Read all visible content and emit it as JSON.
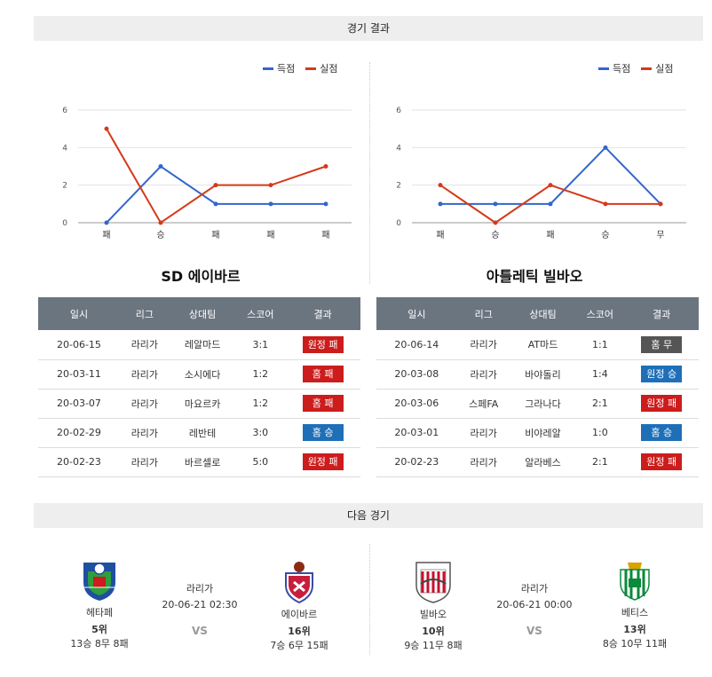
{
  "section_results": "경기 결과",
  "section_next": "다음 경기",
  "legend": {
    "scored": "득점",
    "conceded": "실점"
  },
  "colors": {
    "scored": "#3366cc",
    "conceded": "#d43a1a",
    "win": "#1e6fb8",
    "lose": "#cc1c1c",
    "draw": "#555555",
    "header": "#6b7580"
  },
  "chart_data": [
    {
      "type": "line",
      "categories": [
        "패",
        "승",
        "패",
        "패",
        "패"
      ],
      "series": [
        {
          "name": "득점",
          "values": [
            0,
            3,
            1,
            1,
            1
          ]
        },
        {
          "name": "실점",
          "values": [
            5,
            0,
            2,
            2,
            3
          ]
        }
      ],
      "ylim": [
        0,
        6
      ],
      "yticks": [
        "0",
        "2",
        "4",
        "6"
      ],
      "grid": true,
      "legend": "top-right"
    },
    {
      "type": "line",
      "categories": [
        "패",
        "승",
        "패",
        "승",
        "무"
      ],
      "series": [
        {
          "name": "득점",
          "values": [
            1,
            1,
            1,
            4,
            1
          ]
        },
        {
          "name": "실점",
          "values": [
            2,
            0,
            2,
            1,
            1
          ]
        }
      ],
      "ylim": [
        0,
        6
      ],
      "yticks": [
        "0",
        "2",
        "4",
        "6"
      ],
      "grid": true,
      "legend": "top-right"
    }
  ],
  "teams": {
    "left": "SD 에이바르",
    "right": "아틀레틱 빌바오"
  },
  "table_headers": [
    "일시",
    "리그",
    "상대팀",
    "스코어",
    "결과"
  ],
  "left_matches": [
    {
      "date": "20-06-15",
      "league": "라리가",
      "opponent": "레알마드",
      "score": "3:1",
      "result": "원정 패",
      "kind": "lose"
    },
    {
      "date": "20-03-11",
      "league": "라리가",
      "opponent": "소시에다",
      "score": "1:2",
      "result": "홈 패",
      "kind": "lose"
    },
    {
      "date": "20-03-07",
      "league": "라리가",
      "opponent": "마요르카",
      "score": "1:2",
      "result": "홈 패",
      "kind": "lose"
    },
    {
      "date": "20-02-29",
      "league": "라리가",
      "opponent": "레반테",
      "score": "3:0",
      "result": "홈 승",
      "kind": "win"
    },
    {
      "date": "20-02-23",
      "league": "라리가",
      "opponent": "바르셀로",
      "score": "5:0",
      "result": "원정 패",
      "kind": "lose"
    }
  ],
  "right_matches": [
    {
      "date": "20-06-14",
      "league": "라리가",
      "opponent": "AT마드",
      "score": "1:1",
      "result": "홈 무",
      "kind": "draw"
    },
    {
      "date": "20-03-08",
      "league": "라리가",
      "opponent": "바야돌리",
      "score": "1:4",
      "result": "원정 승",
      "kind": "win"
    },
    {
      "date": "20-03-06",
      "league": "스페FA",
      "opponent": "그라나다",
      "score": "2:1",
      "result": "원정 패",
      "kind": "lose"
    },
    {
      "date": "20-03-01",
      "league": "라리가",
      "opponent": "비야레알",
      "score": "1:0",
      "result": "홈 승",
      "kind": "win"
    },
    {
      "date": "20-02-23",
      "league": "라리가",
      "opponent": "알라베스",
      "score": "2:1",
      "result": "원정 패",
      "kind": "lose"
    }
  ],
  "next_matches": [
    {
      "league": "라리가",
      "datetime": "20-06-21 02:30",
      "vs": "VS",
      "home": {
        "name": "헤타페",
        "rank": "5위",
        "record": "13승 8무 8패"
      },
      "away": {
        "name": "에이바르",
        "rank": "16위",
        "record": "7승 6무 15패"
      }
    },
    {
      "league": "라리가",
      "datetime": "20-06-21 00:00",
      "vs": "VS",
      "home": {
        "name": "빌바오",
        "rank": "10위",
        "record": "9승 11무 8패"
      },
      "away": {
        "name": "베티스",
        "rank": "13위",
        "record": "8승 10무 11패"
      }
    }
  ]
}
